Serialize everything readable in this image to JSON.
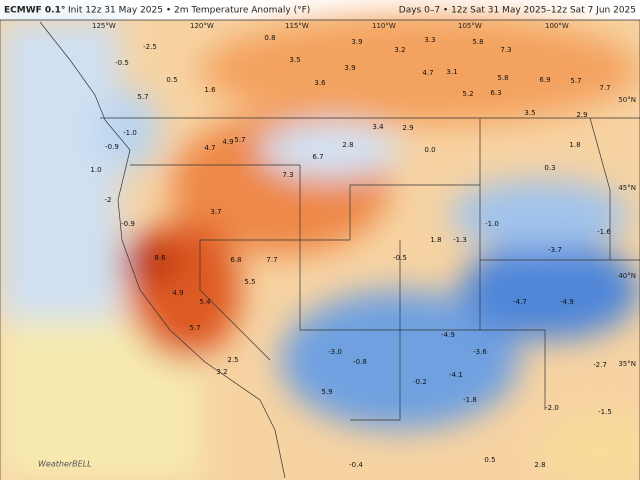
{
  "header": {
    "title": "ECMWF 0.1°",
    "subtitle": "Init 12z 31 May 2025 • 2m Temperature Anomaly (°F)",
    "period": "Days 0–7 • 12z Sat 31 May 2025–12z Sat 7 Jun 2025"
  },
  "longitudes": [
    "125°W",
    "120°W",
    "115°W",
    "110°W",
    "105°W",
    "100°W"
  ],
  "latitudes": [
    "50°N",
    "45°N",
    "40°N",
    "35°N"
  ],
  "logo": "WeatherBELL",
  "anomalies": [
    "-2.5",
    "-0.5",
    "0.5",
    "5.7",
    "1.6",
    "0.8",
    "3.5",
    "3.6",
    "3.9",
    "3.9",
    "3.2",
    "3.3",
    "5.8",
    "7.3",
    "4.7",
    "3.1",
    "5.8",
    "6.9",
    "5.7",
    "7.7",
    "5.2",
    "6.3",
    "3.5",
    "2.9",
    "4.7",
    "4.9",
    "5.7",
    "7.3",
    "6.7",
    "2.8",
    "3.4",
    "2.9",
    "0.0",
    "0.3",
    "1.8",
    "3.7",
    "-1.0",
    "-3.7",
    "-4.7",
    "-4.9",
    "-3.6",
    "-1.8",
    "-4.1",
    "-3.0",
    "5.9",
    "-0.8",
    "-0.2",
    "-4.9",
    "-0.5",
    "-1.6",
    "-2.0",
    "-1.5",
    "-2.7",
    "1.8",
    "-1.3",
    "8.6",
    "4.9",
    "6.8",
    "7.7",
    "5.5",
    "5.4",
    "5.7",
    "2.5",
    "3.2",
    "-1.0",
    "-0.9",
    "-0.9",
    "-2",
    "1.0",
    "2.8",
    "-0.4",
    "0.5"
  ]
}
